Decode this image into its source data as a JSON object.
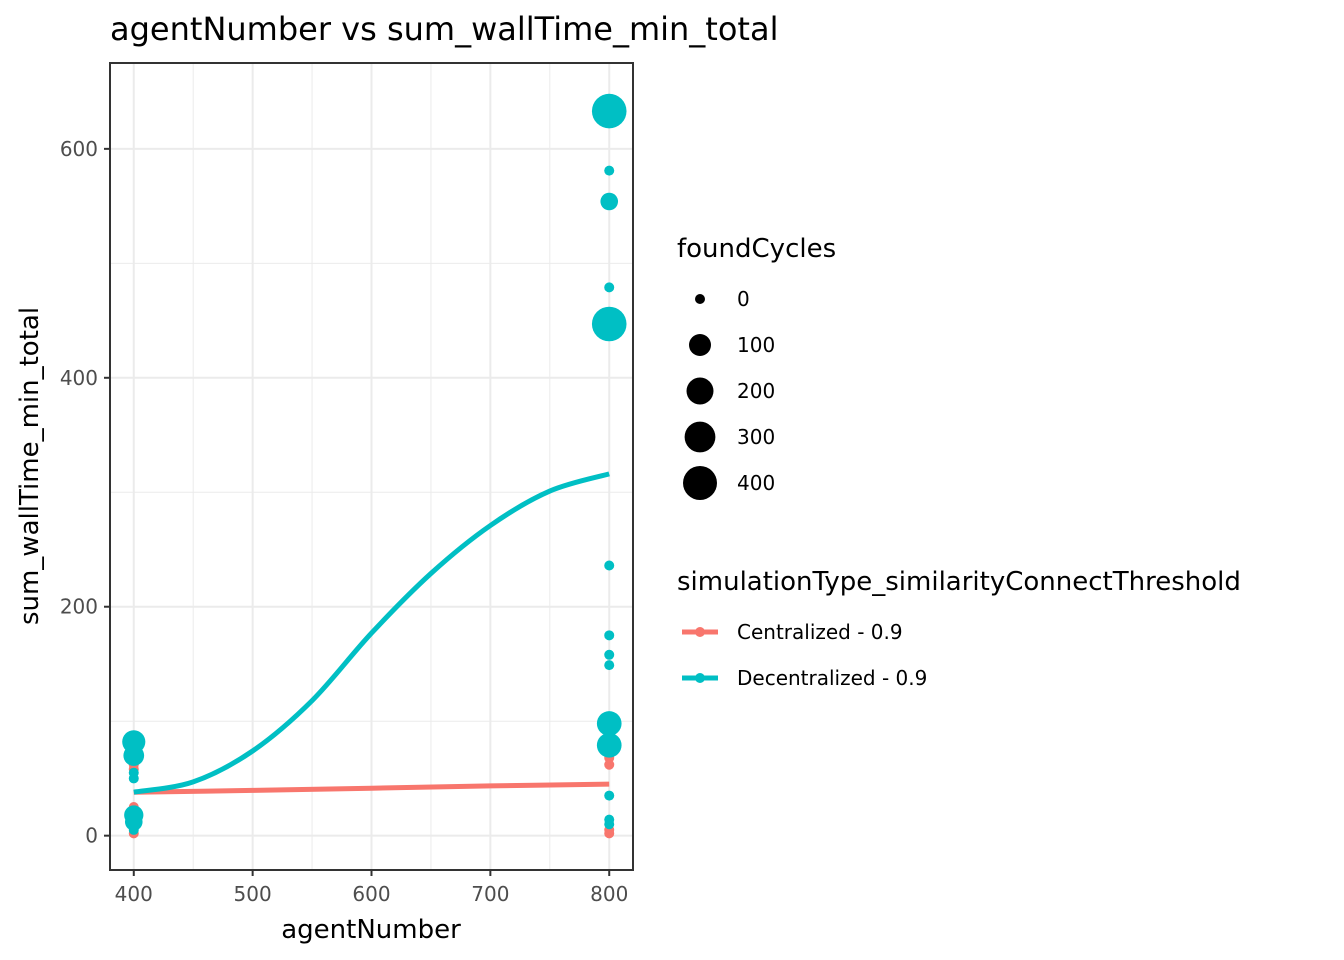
{
  "chart_data": {
    "type": "scatter",
    "title": "agentNumber  vs  sum_wallTime_min_total",
    "xlabel": "agentNumber",
    "ylabel": "sum_wallTime_min_total",
    "xlim": [
      380,
      820
    ],
    "ylim": [
      -30,
      675
    ],
    "xticks": [
      400,
      500,
      600,
      700,
      800
    ],
    "yticks": [
      0,
      200,
      400,
      600
    ],
    "grid": true,
    "legend_position": "right",
    "size_legend": {
      "title": "foundCycles",
      "entries": [
        {
          "label": "0",
          "value": 0
        },
        {
          "label": "100",
          "value": 100
        },
        {
          "label": "200",
          "value": 200
        },
        {
          "label": "300",
          "value": 300
        },
        {
          "label": "400",
          "value": 400
        }
      ]
    },
    "color_legend": {
      "title": "simulationType_similarityConnectThreshold"
    },
    "series": [
      {
        "name": "Centralized - 0.9",
        "color": "#F8766D",
        "points": [
          {
            "x": 400,
            "y": 2,
            "size": 0
          },
          {
            "x": 400,
            "y": 20,
            "size": 0
          },
          {
            "x": 400,
            "y": 25,
            "size": 0
          },
          {
            "x": 400,
            "y": 58,
            "size": 0
          },
          {
            "x": 400,
            "y": 62,
            "size": 0
          },
          {
            "x": 800,
            "y": 2,
            "size": 0
          },
          {
            "x": 800,
            "y": 5,
            "size": 0
          },
          {
            "x": 800,
            "y": 62,
            "size": 0
          },
          {
            "x": 800,
            "y": 68,
            "size": 0
          },
          {
            "x": 800,
            "y": 73,
            "size": 0
          },
          {
            "x": 800,
            "y": 87,
            "size": 0
          }
        ],
        "fit": [
          {
            "x": 400,
            "y": 38
          },
          {
            "x": 500,
            "y": 39.5
          },
          {
            "x": 600,
            "y": 41.5
          },
          {
            "x": 700,
            "y": 43.5
          },
          {
            "x": 800,
            "y": 45
          }
        ]
      },
      {
        "name": "Decentralized - 0.9",
        "color": "#00BFC4",
        "points": [
          {
            "x": 400,
            "y": 5,
            "size": 0
          },
          {
            "x": 400,
            "y": 12,
            "size": 40
          },
          {
            "x": 400,
            "y": 18,
            "size": 60
          },
          {
            "x": 400,
            "y": 50,
            "size": 0
          },
          {
            "x": 400,
            "y": 55,
            "size": 0
          },
          {
            "x": 400,
            "y": 70,
            "size": 80
          },
          {
            "x": 400,
            "y": 82,
            "size": 120
          },
          {
            "x": 800,
            "y": 10,
            "size": 0
          },
          {
            "x": 800,
            "y": 14,
            "size": 0
          },
          {
            "x": 800,
            "y": 35,
            "size": 0
          },
          {
            "x": 800,
            "y": 79,
            "size": 150
          },
          {
            "x": 800,
            "y": 98,
            "size": 150
          },
          {
            "x": 800,
            "y": 149,
            "size": 0
          },
          {
            "x": 800,
            "y": 158,
            "size": 0
          },
          {
            "x": 800,
            "y": 175,
            "size": 0
          },
          {
            "x": 800,
            "y": 236,
            "size": 0
          },
          {
            "x": 800,
            "y": 447,
            "size": 420
          },
          {
            "x": 800,
            "y": 479,
            "size": 0
          },
          {
            "x": 800,
            "y": 554,
            "size": 40
          },
          {
            "x": 800,
            "y": 581,
            "size": 0
          },
          {
            "x": 800,
            "y": 633,
            "size": 420
          }
        ],
        "fit": [
          {
            "x": 400,
            "y": 38
          },
          {
            "x": 450,
            "y": 47
          },
          {
            "x": 500,
            "y": 74
          },
          {
            "x": 550,
            "y": 118
          },
          {
            "x": 600,
            "y": 177
          },
          {
            "x": 650,
            "y": 229
          },
          {
            "x": 700,
            "y": 271
          },
          {
            "x": 750,
            "y": 301
          },
          {
            "x": 800,
            "y": 316
          }
        ]
      }
    ]
  }
}
